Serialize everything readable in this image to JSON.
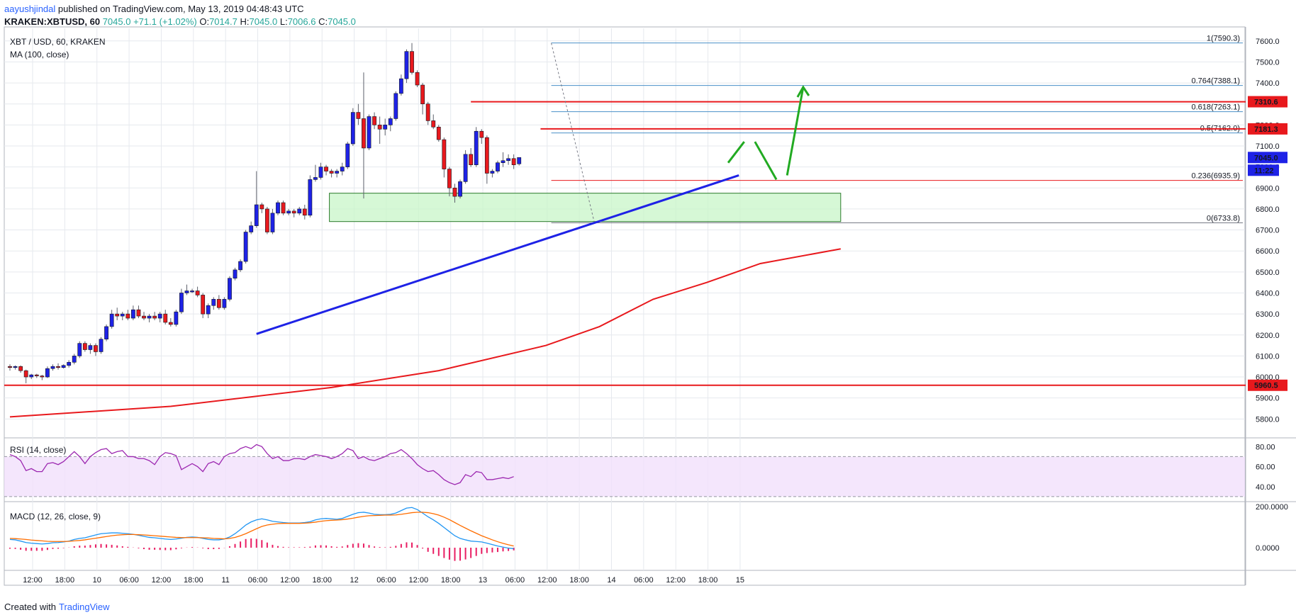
{
  "header": {
    "author": "aayushjindal",
    "published": "published on TradingView.com, May 13, 2019 04:48:43 UTC",
    "symbol": "KRAKEN:XBTUSD, 60",
    "last": "7045.0",
    "change": "+71.1 (+1.02%)",
    "o_label": "O:",
    "o_val": "7014.7",
    "h_label": "H:",
    "h_val": "7045.0",
    "l_label": "L:",
    "l_val": "7006.6",
    "c_label": "C:",
    "c_val": "7045.0"
  },
  "footer": {
    "created_with": "Created with",
    "brand": "TradingView"
  },
  "colors": {
    "up": "#1e22e6",
    "down": "#e8191d",
    "ma": "#e8191d",
    "trend": "#1e22e6",
    "fib": "#4a90c8",
    "zone": "#7cda7c",
    "rsi": "#9c27b0",
    "macd": "#2196f3",
    "signal": "#ff6d00",
    "hist": "#e91e63",
    "arrow": "#22aa22"
  },
  "chart_data": [
    {
      "type": "candlestick",
      "title": "XBT / USD, 60, KRAKEN",
      "indicator": "MA (100, close)",
      "ylim": [
        5710,
        7660
      ],
      "yticks": [
        5800,
        5900,
        6000,
        6100,
        6200,
        6300,
        6400,
        6500,
        6600,
        6700,
        6800,
        6900,
        7000,
        7100,
        7200,
        7300,
        7400,
        7500,
        7600
      ],
      "xlabels": [
        "12:00",
        "18:00",
        "10",
        "06:00",
        "12:00",
        "18:00",
        "11",
        "06:00",
        "12:00",
        "18:00",
        "12",
        "06:00",
        "12:00",
        "18:00",
        "13",
        "06:00",
        "12:00",
        "18:00",
        "14",
        "06:00",
        "12:00",
        "18:00",
        "15"
      ],
      "xstep_hours": 6,
      "candles_ohlc": [
        [
          6050,
          6060,
          6030,
          6045
        ],
        [
          6045,
          6055,
          6035,
          6050
        ],
        [
          6050,
          6055,
          6020,
          6030
        ],
        [
          6030,
          6035,
          5970,
          6000
        ],
        [
          6000,
          6015,
          5990,
          6010
        ],
        [
          6010,
          6015,
          5995,
          6005
        ],
        [
          6005,
          6010,
          5985,
          6000
        ],
        [
          6000,
          6050,
          5995,
          6040
        ],
        [
          6040,
          6060,
          6030,
          6050
        ],
        [
          6050,
          6065,
          6035,
          6045
        ],
        [
          6045,
          6060,
          6040,
          6055
        ],
        [
          6055,
          6080,
          6045,
          6070
        ],
        [
          6070,
          6110,
          6060,
          6100
        ],
        [
          6100,
          6170,
          6090,
          6160
        ],
        [
          6160,
          6170,
          6120,
          6130
        ],
        [
          6130,
          6160,
          6110,
          6150
        ],
        [
          6150,
          6160,
          6100,
          6120
        ],
        [
          6120,
          6190,
          6110,
          6180
        ],
        [
          6180,
          6250,
          6170,
          6240
        ],
        [
          6240,
          6320,
          6230,
          6300
        ],
        [
          6300,
          6330,
          6270,
          6290
        ],
        [
          6290,
          6310,
          6270,
          6300
        ],
        [
          6300,
          6320,
          6270,
          6280
        ],
        [
          6280,
          6340,
          6270,
          6320
        ],
        [
          6320,
          6340,
          6280,
          6290
        ],
        [
          6290,
          6310,
          6270,
          6280
        ],
        [
          6280,
          6300,
          6260,
          6290
        ],
        [
          6290,
          6310,
          6270,
          6280
        ],
        [
          6280,
          6310,
          6260,
          6300
        ],
        [
          6300,
          6320,
          6250,
          6260
        ],
        [
          6260,
          6280,
          6240,
          6250
        ],
        [
          6250,
          6320,
          6240,
          6310
        ],
        [
          6310,
          6420,
          6300,
          6400
        ],
        [
          6400,
          6440,
          6390,
          6410
        ],
        [
          6410,
          6420,
          6400,
          6410
        ],
        [
          6410,
          6430,
          6380,
          6390
        ],
        [
          6390,
          6400,
          6280,
          6300
        ],
        [
          6300,
          6350,
          6280,
          6340
        ],
        [
          6340,
          6380,
          6320,
          6370
        ],
        [
          6370,
          6390,
          6320,
          6330
        ],
        [
          6330,
          6380,
          6320,
          6370
        ],
        [
          6370,
          6480,
          6360,
          6470
        ],
        [
          6470,
          6520,
          6460,
          6510
        ],
        [
          6510,
          6560,
          6500,
          6550
        ],
        [
          6550,
          6700,
          6540,
          6690
        ],
        [
          6690,
          6740,
          6680,
          6720
        ],
        [
          6720,
          6980,
          6710,
          6820
        ],
        [
          6820,
          6830,
          6780,
          6800
        ],
        [
          6800,
          6810,
          6680,
          6690
        ],
        [
          6690,
          6800,
          6680,
          6780
        ],
        [
          6780,
          6840,
          6770,
          6830
        ],
        [
          6830,
          6840,
          6770,
          6780
        ],
        [
          6780,
          6800,
          6770,
          6790
        ],
        [
          6790,
          6800,
          6760,
          6780
        ],
        [
          6780,
          6810,
          6770,
          6800
        ],
        [
          6800,
          6820,
          6750,
          6770
        ],
        [
          6770,
          6960,
          6760,
          6940
        ],
        [
          6940,
          7010,
          6930,
          6950
        ],
        [
          6950,
          7020,
          6940,
          7000
        ],
        [
          7000,
          7010,
          6960,
          6980
        ],
        [
          6980,
          6990,
          6950,
          6970
        ],
        [
          6970,
          6990,
          6950,
          6980
        ],
        [
          6980,
          7020,
          6960,
          7000
        ],
        [
          7000,
          7120,
          6990,
          7110
        ],
        [
          7110,
          7280,
          7100,
          7260
        ],
        [
          7260,
          7300,
          7200,
          7230
        ],
        [
          7230,
          7450,
          6850,
          7090
        ],
        [
          7090,
          7250,
          7080,
          7240
        ],
        [
          7240,
          7260,
          7180,
          7200
        ],
        [
          7200,
          7240,
          7110,
          7180
        ],
        [
          7180,
          7230,
          7150,
          7200
        ],
        [
          7200,
          7240,
          7170,
          7230
        ],
        [
          7230,
          7360,
          7220,
          7350
        ],
        [
          7350,
          7440,
          7340,
          7420
        ],
        [
          7420,
          7560,
          7400,
          7550
        ],
        [
          7550,
          7590,
          7440,
          7450
        ],
        [
          7450,
          7460,
          7380,
          7390
        ],
        [
          7390,
          7400,
          7250,
          7300
        ],
        [
          7300,
          7310,
          7200,
          7220
        ],
        [
          7220,
          7250,
          7180,
          7190
        ],
        [
          7190,
          7200,
          7120,
          7130
        ],
        [
          7130,
          7140,
          6950,
          6990
        ],
        [
          6990,
          7000,
          6860,
          6900
        ],
        [
          6900,
          6920,
          6830,
          6860
        ],
        [
          6860,
          6940,
          6850,
          6930
        ],
        [
          6930,
          7080,
          6920,
          7060
        ],
        [
          7060,
          7090,
          7000,
          7010
        ],
        [
          7010,
          7190,
          7000,
          7170
        ],
        [
          7170,
          7180,
          7110,
          7140
        ],
        [
          7140,
          7150,
          6920,
          6970
        ],
        [
          6970,
          6990,
          6950,
          6980
        ],
        [
          6980,
          7030,
          6970,
          7020
        ],
        [
          7020,
          7070,
          7000,
          7030
        ],
        [
          7030,
          7060,
          7010,
          7040
        ],
        [
          7040,
          7060,
          6990,
          7010
        ],
        [
          7014.7,
          7045,
          7006.6,
          7045
        ]
      ],
      "ma100_points": [
        [
          0,
          5810
        ],
        [
          30,
          5860
        ],
        [
          60,
          5950
        ],
        [
          80,
          6030
        ],
        [
          100,
          6150
        ],
        [
          110,
          6240
        ],
        [
          120,
          6370
        ],
        [
          130,
          6450
        ],
        [
          140,
          6540
        ],
        [
          155,
          6610
        ]
      ],
      "horizontal_levels": [
        {
          "value": 7310.6,
          "label": "7310.6"
        },
        {
          "value": 7181.3,
          "label": "7181.3"
        },
        {
          "value": 5960.5,
          "label": "5960.5"
        }
      ],
      "fib_levels": [
        {
          "ratio": "1",
          "value": 7590.3,
          "label": "1(7590.3)"
        },
        {
          "ratio": "0.764",
          "value": 7388.1,
          "label": "0.764(7388.1)"
        },
        {
          "ratio": "0.618",
          "value": 7263.1,
          "label": "0.618(7263.1)"
        },
        {
          "ratio": "0.5",
          "value": 7162.0,
          "label": "0.5(7162.0)"
        },
        {
          "ratio": "0.236",
          "value": 6935.9,
          "label": "0.236(6935.9)"
        },
        {
          "ratio": "0",
          "value": 6733.8,
          "label": "0(6733.8)"
        }
      ],
      "support_zone": {
        "from": 6740,
        "to": 6875
      },
      "trendline": [
        [
          6205,
          0
        ],
        [
          6960,
          1
        ]
      ],
      "last_price_label": "7045.0",
      "countdown_label": "11:22"
    },
    {
      "type": "line",
      "title": "RSI (14, close)",
      "ylim": [
        25,
        88
      ],
      "yticks": [
        40,
        60,
        80
      ],
      "ytick_labels": [
        "40.00",
        "60.00",
        "80.00"
      ],
      "band": [
        30,
        70
      ],
      "values": [
        72,
        70,
        66,
        56,
        58,
        55,
        55,
        63,
        64,
        62,
        65,
        70,
        75,
        70,
        63,
        70,
        74,
        77,
        78,
        73,
        75,
        76,
        70,
        70,
        68,
        68,
        66,
        62,
        70,
        74,
        73,
        71,
        57,
        60,
        63,
        60,
        55,
        63,
        65,
        62,
        70,
        73,
        74,
        78,
        80,
        78,
        82,
        80,
        73,
        68,
        70,
        66,
        66,
        68,
        68,
        67,
        70,
        72,
        71,
        70,
        68,
        70,
        73,
        78,
        76,
        68,
        70,
        67,
        66,
        68,
        70,
        73,
        74,
        77,
        73,
        68,
        62,
        58,
        55,
        56,
        52,
        47,
        44,
        42,
        44,
        52,
        50,
        55,
        54,
        47,
        47,
        48,
        49,
        48,
        50
      ]
    },
    {
      "type": "line",
      "title": "MACD (12, 26, close, 9)",
      "ylim": [
        -110,
        220
      ],
      "yticks": [
        0,
        200
      ],
      "ytick_labels": [
        "0.0000",
        "200.0000"
      ],
      "macd": [
        40,
        38,
        32,
        25,
        22,
        20,
        18,
        20,
        24,
        25,
        28,
        32,
        40,
        45,
        48,
        55,
        62,
        68,
        70,
        72,
        72,
        70,
        68,
        65,
        60,
        55,
        50,
        48,
        45,
        42,
        40,
        42,
        46,
        50,
        52,
        50,
        45,
        40,
        38,
        38,
        42,
        52,
        68,
        88,
        110,
        125,
        135,
        140,
        135,
        128,
        125,
        122,
        120,
        120,
        120,
        122,
        126,
        135,
        140,
        142,
        140,
        138,
        142,
        152,
        162,
        170,
        172,
        168,
        162,
        160,
        160,
        162,
        168,
        180,
        192,
        195,
        185,
        168,
        150,
        135,
        118,
        98,
        78,
        58,
        45,
        38,
        32,
        30,
        28,
        22,
        15,
        8,
        3,
        -2,
        -5
      ],
      "signal": [
        45,
        44,
        42,
        40,
        37,
        35,
        33,
        31,
        30,
        30,
        30,
        31,
        33,
        35,
        38,
        42,
        46,
        50,
        54,
        58,
        61,
        63,
        64,
        64,
        63,
        62,
        60,
        58,
        56,
        54,
        52,
        50,
        49,
        49,
        49,
        49,
        48,
        47,
        45,
        44,
        43,
        45,
        50,
        58,
        68,
        80,
        92,
        103,
        110,
        114,
        117,
        118,
        118,
        118,
        118,
        119,
        121,
        124,
        128,
        131,
        133,
        134,
        136,
        139,
        143,
        148,
        152,
        155,
        156,
        157,
        158,
        158,
        159,
        162,
        166,
        170,
        172,
        172,
        170,
        165,
        158,
        148,
        136,
        122,
        108,
        95,
        82,
        70,
        58,
        48,
        38,
        29,
        21,
        14,
        8
      ],
      "histogram": [
        -5,
        -6,
        -10,
        -15,
        -15,
        -15,
        -15,
        -11,
        -6,
        -5,
        -2,
        1,
        7,
        10,
        10,
        13,
        16,
        18,
        16,
        14,
        11,
        7,
        4,
        1,
        -3,
        -7,
        -10,
        -10,
        -11,
        -12,
        -12,
        -8,
        -3,
        1,
        3,
        1,
        -3,
        -7,
        -7,
        -6,
        -1,
        7,
        18,
        30,
        42,
        45,
        43,
        37,
        25,
        14,
        8,
        4,
        2,
        2,
        2,
        3,
        5,
        11,
        12,
        11,
        7,
        4,
        6,
        13,
        19,
        22,
        20,
        13,
        6,
        3,
        2,
        4,
        9,
        18,
        26,
        25,
        13,
        -4,
        -20,
        -30,
        -40,
        -50,
        -58,
        -64,
        -63,
        -57,
        -50,
        -40,
        -30,
        -26,
        -23,
        -21,
        -18,
        -16,
        -13
      ]
    }
  ]
}
